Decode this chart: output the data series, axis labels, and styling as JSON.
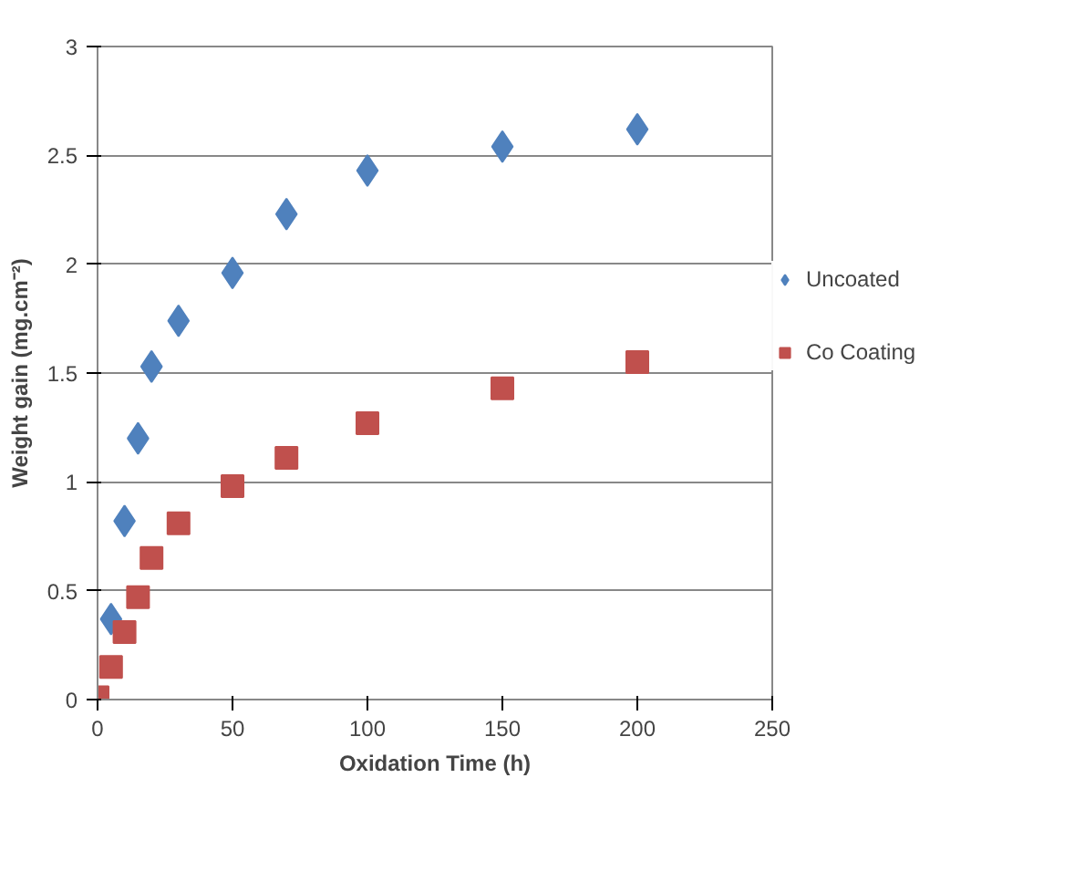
{
  "chart_data": {
    "type": "scatter",
    "xlabel": "Oxidation Time (h)",
    "ylabel": "Weight gain (mg.cm⁻²)",
    "xlim": [
      0,
      250
    ],
    "xticks": [
      0,
      50,
      100,
      150,
      200,
      250
    ],
    "ylim": [
      0,
      3
    ],
    "yticks": [
      0,
      0.5,
      1,
      1.5,
      2,
      2.5,
      3
    ],
    "grid": "y",
    "legend": "right",
    "series": [
      {
        "name": "Uncoated",
        "color": "#4f81bd",
        "marker": "diamond",
        "x": [
          5,
          10,
          15,
          20,
          30,
          50,
          70,
          100,
          150,
          200
        ],
        "values": [
          0.37,
          0.82,
          1.2,
          1.53,
          1.74,
          1.96,
          2.23,
          2.43,
          2.54,
          2.62
        ]
      },
      {
        "name": "Co Coating",
        "color": "#c0504d",
        "marker": "square",
        "x": [
          0,
          5,
          10,
          15,
          20,
          30,
          50,
          70,
          100,
          150,
          200
        ],
        "values": [
          0.01,
          0.15,
          0.31,
          0.47,
          0.65,
          0.81,
          0.98,
          1.11,
          1.27,
          1.43,
          1.55
        ]
      }
    ]
  }
}
